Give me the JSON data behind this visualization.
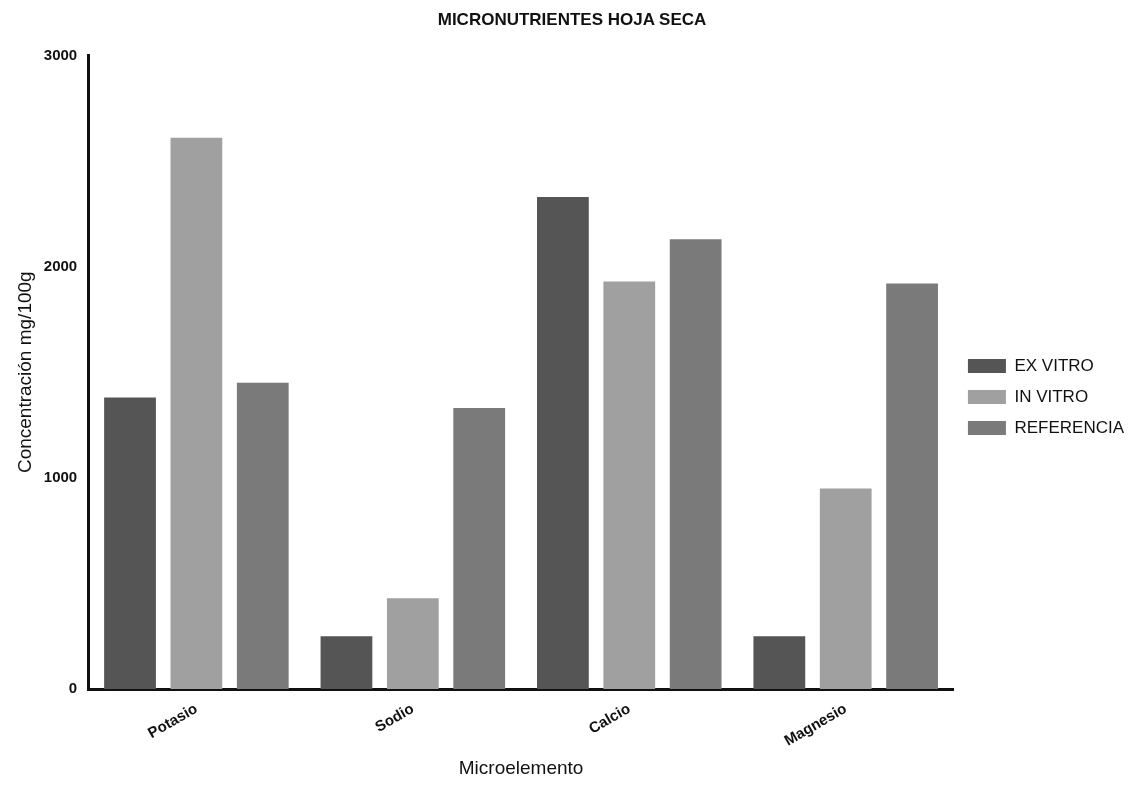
{
  "chart_data": {
    "type": "bar",
    "title": "MICRONUTRIENTES HOJA SECA",
    "xlabel": "Microelemento",
    "ylabel": "Concentración mg/100g",
    "categories": [
      "Potasio",
      "Sodio",
      "Calcio",
      "Magnesio"
    ],
    "series": [
      {
        "name": "EX VITRO",
        "color": "#555555",
        "values": [
          1380,
          250,
          2330,
          250
        ]
      },
      {
        "name": "IN VITRO",
        "color": "#a0a0a0",
        "values": [
          2610,
          430,
          1930,
          950
        ]
      },
      {
        "name": "REFERENCIA",
        "color": "#7a7a7a",
        "values": [
          1450,
          1330,
          2130,
          1920
        ]
      }
    ],
    "ylim": [
      0,
      3000
    ],
    "yticks": [
      0,
      1000,
      2000,
      3000
    ],
    "grid": false,
    "legend": "right"
  }
}
